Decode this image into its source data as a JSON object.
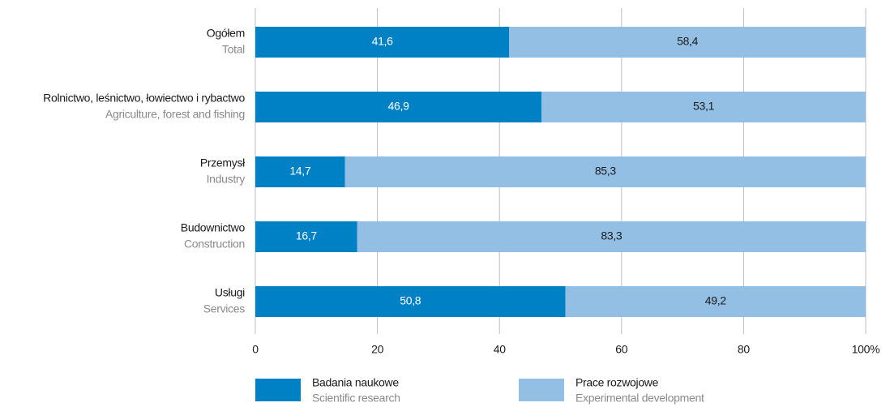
{
  "chart_data": {
    "type": "stacked_bar_horizontal",
    "categories": [
      "Ogółem",
      "Rolnictwo, leśnictwo, łowiectwo i rybactwo",
      "Przemysł",
      "Budownictwo",
      "Usługi"
    ],
    "categories_en": [
      "Total",
      "Agriculture, forest and fishing",
      "Industry",
      "Construction",
      "Services"
    ],
    "series": [
      {
        "name": "Badania naukowe",
        "name_en": "Scientific research",
        "color": "#0081c6",
        "label_color": "#ffffff",
        "values": [
          41.6,
          46.9,
          14.7,
          16.7,
          50.8
        ],
        "value_labels": [
          "41,6",
          "46,9",
          "14,7",
          "16,7",
          "50,8"
        ]
      },
      {
        "name": "Prace rozwojowe",
        "name_en": "Experimental development",
        "color": "#93bfe4",
        "label_color": "#1a1a1a",
        "values": [
          58.4,
          53.1,
          85.3,
          83.3,
          49.2
        ],
        "value_labels": [
          "58,4",
          "53,1",
          "85,3",
          "83,3",
          "49,2"
        ]
      }
    ],
    "xlim": [
      0,
      100
    ],
    "xticks": [
      0,
      20,
      40,
      60,
      80,
      {
        "value": 100,
        "label": "100%"
      }
    ],
    "grid": true
  }
}
